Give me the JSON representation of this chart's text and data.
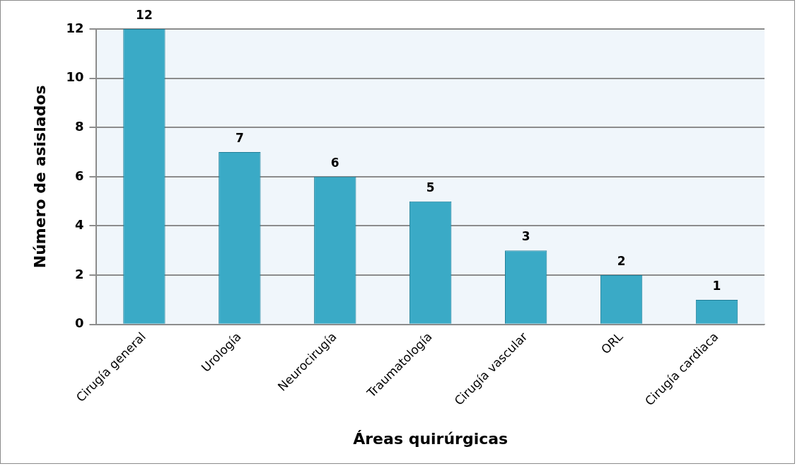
{
  "chart_data": {
    "type": "bar",
    "xlabel": "Áreas quirúrgicas",
    "ylabel": "Número de asislados",
    "categories": [
      "Cirugía general",
      "Urología",
      "Neurocirugía",
      "Traumatología",
      "Cirugía vascular",
      "ORL",
      "Cirugía cardiaca"
    ],
    "values": [
      12,
      7,
      6,
      5,
      3,
      2,
      1
    ],
    "color": "#3aaac6",
    "ylim": [
      0,
      12
    ],
    "yticks": [
      0,
      2,
      4,
      6,
      8,
      10,
      12
    ],
    "grid": "y",
    "data_labels": true
  }
}
